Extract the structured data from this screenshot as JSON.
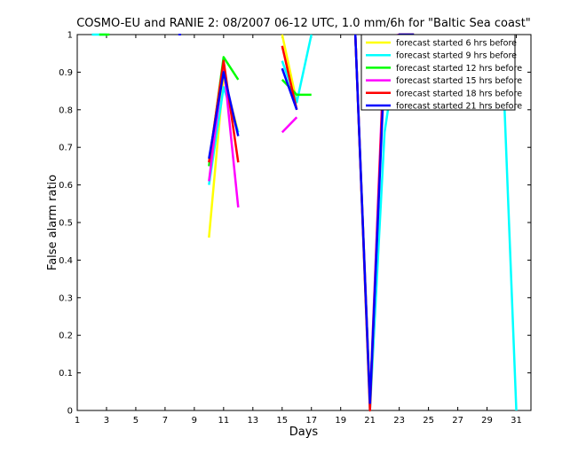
{
  "chart_data": {
    "type": "line",
    "title": "COSMO-EU and RANIE 2: 08/2007 06-12 UTC, 1.0 mm/6h for \"Baltic Sea coast\"",
    "xlabel": "Days",
    "ylabel": "False alarm ratio",
    "xlim": [
      1,
      32
    ],
    "ylim": [
      0,
      1
    ],
    "xticks": [
      1,
      3,
      5,
      7,
      9,
      11,
      13,
      15,
      17,
      19,
      21,
      23,
      25,
      27,
      29,
      31
    ],
    "yticks": [
      0,
      0.1,
      0.2,
      0.3,
      0.4,
      0.5,
      0.6,
      0.7,
      0.8,
      0.9,
      1
    ],
    "ytick_labels": [
      "0",
      "0.1",
      "0.2",
      "0.3",
      "0.4",
      "0.5",
      "0.6",
      "0.7",
      "0.8",
      "0.9",
      "1"
    ],
    "grid": false,
    "legend_position": "top-right",
    "series": [
      {
        "name": "forecast started 6 hrs before",
        "color": "#ffff00",
        "segments": [
          [
            [
              10,
              0.46
            ],
            [
              11,
              0.89
            ],
            [
              12,
              0.74
            ]
          ],
          [
            [
              15,
              1.0
            ],
            [
              16,
              0.82
            ]
          ],
          [
            [
              20,
              1.0
            ],
            [
              21,
              0.03
            ],
            [
              22,
              0.96
            ],
            [
              23,
              1.0
            ],
            [
              24,
              1.0
            ]
          ],
          [
            [
              24.1,
              0.92
            ]
          ]
        ]
      },
      {
        "name": "forecast started 9 hrs before",
        "color": "#00ffff",
        "segments": [
          [
            [
              2,
              1.0
            ],
            [
              3,
              1.0
            ]
          ],
          [
            [
              10,
              0.6
            ],
            [
              11,
              0.86
            ],
            [
              12,
              0.74
            ]
          ],
          [
            [
              15,
              0.93
            ],
            [
              16,
              0.82
            ],
            [
              17,
              1.0
            ]
          ],
          [
            [
              20,
              1.0
            ],
            [
              21,
              0.0
            ],
            [
              22,
              0.74
            ],
            [
              23,
              1.0
            ],
            [
              24,
              1.0
            ]
          ],
          [
            [
              24.1,
              0.9
            ]
          ],
          [
            [
              30,
              1.0
            ],
            [
              31,
              0.0
            ]
          ]
        ]
      },
      {
        "name": "forecast started 12 hrs before",
        "color": "#00ff00",
        "segments": [
          [
            [
              2.5,
              1.0
            ],
            [
              3.2,
              1.0
            ]
          ],
          [
            [
              10,
              0.65
            ],
            [
              11,
              0.94
            ],
            [
              12,
              0.88
            ]
          ],
          [
            [
              15,
              0.88
            ],
            [
              16,
              0.84
            ],
            [
              17,
              0.84
            ]
          ],
          [
            [
              20,
              1.0
            ],
            [
              21,
              0.02
            ],
            [
              22,
              0.95
            ],
            [
              23,
              1.0
            ],
            [
              24,
              1.0
            ]
          ],
          [
            [
              26,
              0.85
            ]
          ]
        ]
      },
      {
        "name": "forecast started 15 hrs before",
        "color": "#ff00ff",
        "segments": [
          [
            [
              10,
              0.61
            ],
            [
              11,
              0.92
            ],
            [
              12,
              0.54
            ]
          ],
          [
            [
              15,
              0.74
            ],
            [
              16,
              0.78
            ]
          ],
          [
            [
              20,
              1.0
            ],
            [
              21,
              0.02
            ],
            [
              22,
              0.99
            ],
            [
              23,
              1.0
            ],
            [
              24,
              1.0
            ]
          ]
        ]
      },
      {
        "name": "forecast started 18 hrs before",
        "color": "#ff0000",
        "segments": [
          [
            [
              10,
              0.66
            ],
            [
              11,
              0.93
            ],
            [
              12,
              0.66
            ]
          ],
          [
            [
              15,
              0.97
            ],
            [
              16,
              0.8
            ]
          ],
          [
            [
              20,
              1.0
            ],
            [
              21,
              0.0
            ],
            [
              22,
              0.97
            ],
            [
              23,
              1.0
            ],
            [
              24,
              1.0
            ]
          ]
        ]
      },
      {
        "name": "forecast started 21 hrs before",
        "color": "#0000ff",
        "segments": [
          [
            [
              10,
              0.67
            ],
            [
              11,
              0.9
            ],
            [
              12,
              0.73
            ]
          ],
          [
            [
              15,
              0.91
            ],
            [
              16,
              0.8
            ]
          ],
          [
            [
              20,
              1.0
            ],
            [
              21,
              0.02
            ],
            [
              22,
              0.92
            ],
            [
              23,
              1.0
            ],
            [
              24,
              1.0
            ]
          ],
          [
            [
              8,
              1.0
            ]
          ]
        ]
      }
    ]
  }
}
